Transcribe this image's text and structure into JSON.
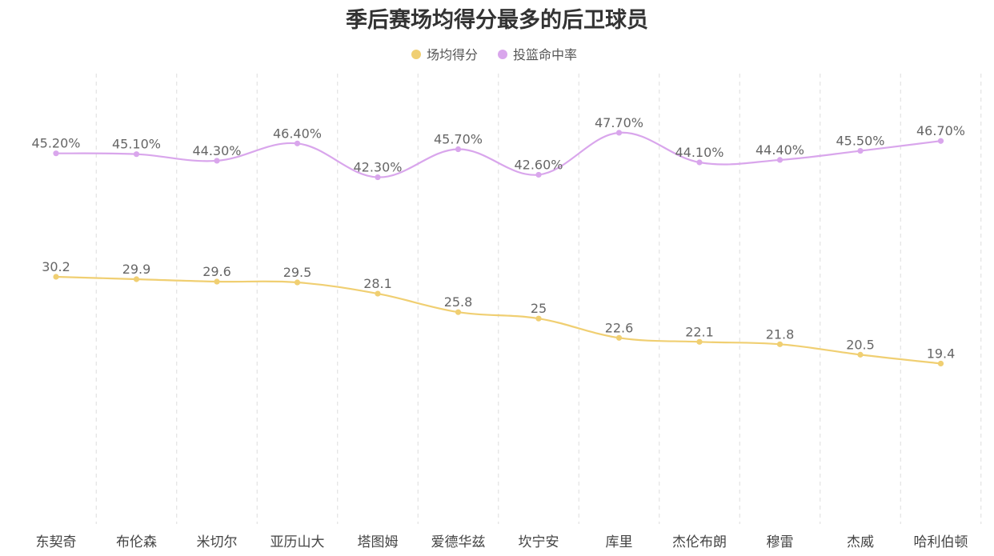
{
  "chart_data": {
    "type": "line",
    "title": "季后赛场均得分最多的后卫球员",
    "categories": [
      "东契奇",
      "布伦森",
      "米切尔",
      "亚历山大",
      "塔图姆",
      "爱德华兹",
      "坎宁安",
      "库里",
      "杰伦布朗",
      "穆雷",
      "杰威",
      "哈利伯顿"
    ],
    "series": [
      {
        "name": "场均得分",
        "values": [
          30.2,
          29.9,
          29.6,
          29.5,
          28.1,
          25.8,
          25,
          22.6,
          22.1,
          21.8,
          20.5,
          19.4
        ],
        "labels": [
          "30.2",
          "29.9",
          "29.6",
          "29.5",
          "28.1",
          "25.8",
          "25",
          "22.6",
          "22.1",
          "21.8",
          "20.5",
          "19.4"
        ],
        "color": "#f0cf72"
      },
      {
        "name": "投篮命中率",
        "values": [
          45.2,
          45.1,
          44.3,
          46.4,
          42.3,
          45.7,
          42.6,
          47.7,
          44.1,
          44.4,
          45.5,
          46.7
        ],
        "labels": [
          "45.20%",
          "45.10%",
          "44.30%",
          "46.40%",
          "42.30%",
          "45.70%",
          "42.60%",
          "47.70%",
          "44.10%",
          "44.40%",
          "45.50%",
          "46.70%"
        ],
        "color": "#d9a6ec"
      }
    ],
    "legend_position": "top-center",
    "grid": "vertical-dashed"
  }
}
